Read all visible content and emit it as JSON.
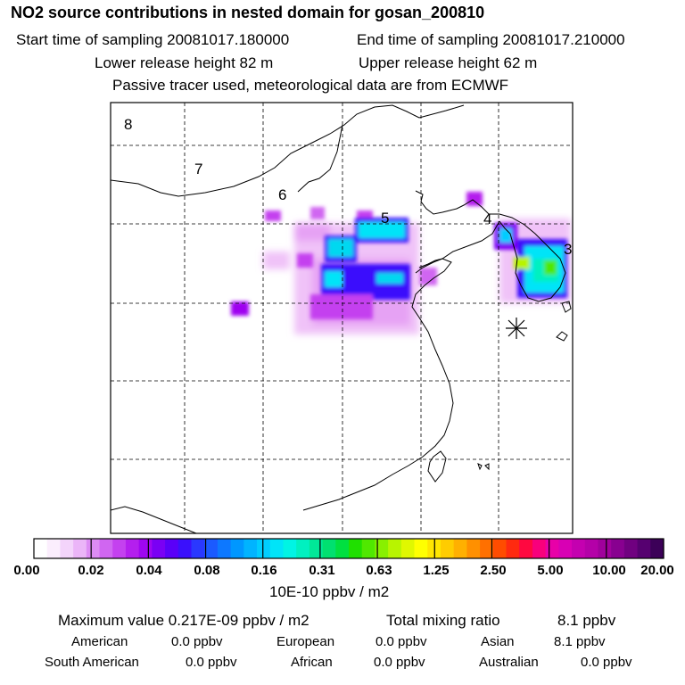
{
  "header": {
    "title": "NO2 source contributions in nested domain for gosan_200810",
    "start_time": "Start time of sampling 20081017.180000",
    "end_time": "End time of sampling 20081017.210000",
    "lower_height": "Lower release height   82 m",
    "upper_height": "Upper release height   62 m",
    "subtitle": "Passive tracer used, meteorological data are from ECMWF"
  },
  "map": {
    "region_labels": [
      "8",
      "7",
      "6",
      "5",
      "4",
      "3"
    ],
    "receptor_marker": "receptor-star-icon"
  },
  "colorbar": {
    "ticks": [
      "0.00",
      "0.02",
      "0.04",
      "0.08",
      "0.16",
      "0.31",
      "0.63",
      "1.25",
      "2.50",
      "5.00",
      "10.00",
      "20.00"
    ],
    "unit": "10E-10 ppbv / m2",
    "colors": [
      "#ffffff",
      "#fbeefd",
      "#f3d4fb",
      "#ebb5f8",
      "#dd8cf4",
      "#d066f1",
      "#c441ef",
      "#b41fee",
      "#9f06f0",
      "#7a00f4",
      "#5a00f8",
      "#3a10fc",
      "#2a38ff",
      "#1b5aff",
      "#0d78ff",
      "#0097ff",
      "#00b4ff",
      "#00cdff",
      "#00e4f8",
      "#00f4e4",
      "#00f0c0",
      "#00e898",
      "#00e070",
      "#00e040",
      "#20e000",
      "#50e800",
      "#88f000",
      "#b8f400",
      "#e0f800",
      "#ffff00",
      "#ffe600",
      "#ffcc00",
      "#ffb000",
      "#ff9000",
      "#ff7000",
      "#ff4c00",
      "#ff2a10",
      "#ff0840",
      "#f8007c",
      "#e800a8",
      "#d800b4",
      "#c400b0",
      "#b400a8",
      "#a0009c",
      "#880090",
      "#700080",
      "#560070",
      "#3c0058"
    ]
  },
  "summary": {
    "max_label": "Maximum value  0.217E-09 ppbv / m2",
    "total_label": "Total mixing ratio",
    "total_value": "8.1 ppbv",
    "american_label": "American",
    "american_value": "0.0 ppbv",
    "european_label": "European",
    "european_value": "0.0 ppbv",
    "asian_label": "Asian",
    "asian_value": "8.1 ppbv",
    "south_american_label": "South American",
    "south_american_value": "0.0 ppbv",
    "african_label": "African",
    "african_value": "0.0 ppbv",
    "australian_label": "Australian",
    "australian_value": "0.0 ppbv"
  }
}
